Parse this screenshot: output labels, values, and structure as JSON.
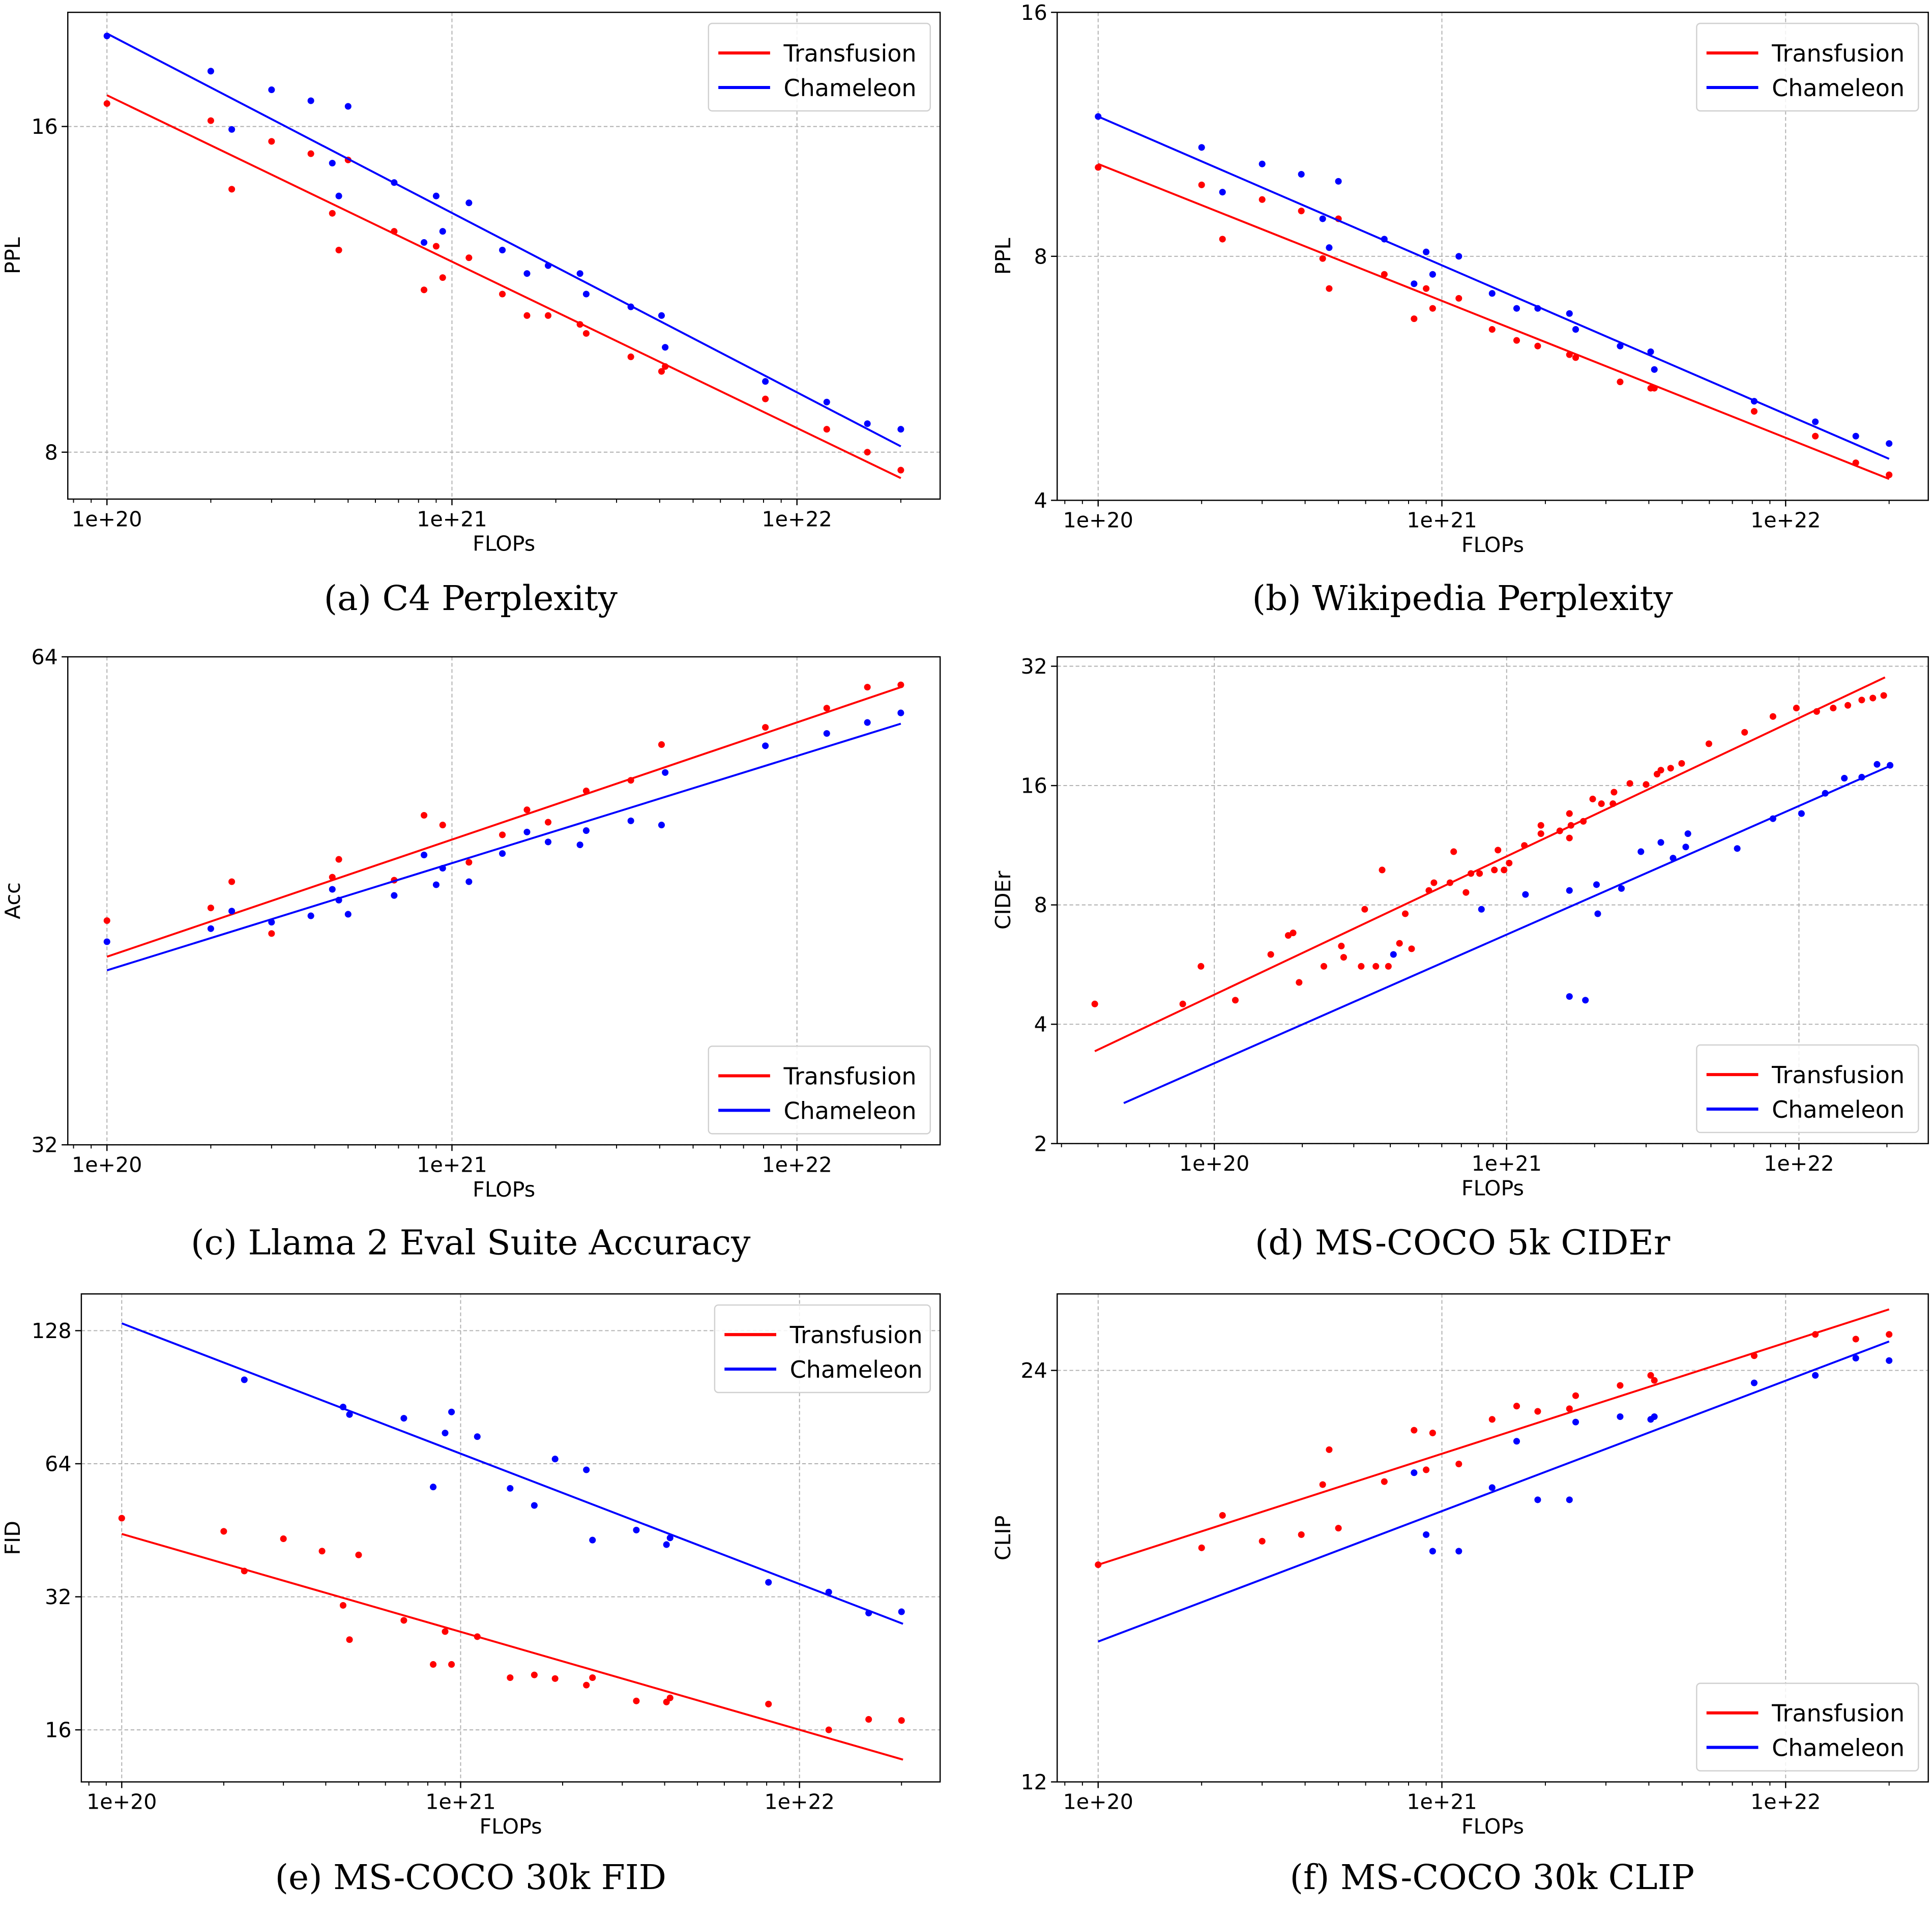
{
  "chart_data": [
    {
      "type": "scatter",
      "title": "(a) C4 Perplexity",
      "xlabel": "FLOPs",
      "ylabel": "PPL",
      "xscale": "log",
      "yscale": "log",
      "xlim": [
        7.7e+19,
        2.6e+22
      ],
      "ylim": [
        7.24,
        20.4
      ],
      "xticks": [
        1e+20,
        1e+21,
        1e+22
      ],
      "xtick_labels": [
        "1e+20",
        "1e+21",
        "1e+22"
      ],
      "yticks": [
        8,
        16
      ],
      "ytick_labels": [
        "8",
        "16"
      ],
      "grid": true,
      "legend": "upper right",
      "series": [
        {
          "name": "Transfusion",
          "color": "#ff0000",
          "x": [
            1e+20,
            2e+20,
            2.3e+20,
            3e+20,
            3.9e+20,
            4.5e+20,
            4.7e+20,
            5e+20,
            6.8e+20,
            8.3e+20,
            9e+20,
            9.4e+20,
            1.12e+21,
            1.4e+21,
            1.65e+21,
            1.9e+21,
            2.35e+21,
            2.45e+21,
            3.3e+21,
            4.05e+21,
            4.15e+21,
            8.1e+21,
            1.22e+22,
            1.6e+22,
            2e+22
          ],
          "y": [
            16.8,
            16.2,
            14.0,
            15.5,
            15.1,
            13.3,
            12.3,
            14.9,
            12.8,
            11.3,
            12.4,
            11.6,
            12.1,
            11.2,
            10.7,
            10.7,
            10.5,
            10.3,
            9.8,
            9.5,
            9.6,
            8.96,
            8.4,
            8.0,
            7.7
          ],
          "fit": {
            "x": [
              1e+20,
              2e+22
            ],
            "y": [
              17.1,
              7.57
            ]
          }
        },
        {
          "name": "Chameleon",
          "color": "#0000ff",
          "x": [
            1e+20,
            2e+20,
            2.3e+20,
            3e+20,
            3.9e+20,
            4.5e+20,
            4.7e+20,
            5e+20,
            6.8e+20,
            8.3e+20,
            9e+20,
            9.4e+20,
            1.12e+21,
            1.4e+21,
            1.65e+21,
            1.9e+21,
            2.35e+21,
            2.45e+21,
            3.3e+21,
            4.05e+21,
            4.15e+21,
            8.1e+21,
            1.22e+22,
            1.6e+22,
            2e+22
          ],
          "y": [
            19.4,
            18.0,
            15.9,
            17.3,
            16.9,
            14.8,
            13.8,
            16.7,
            14.2,
            12.5,
            13.8,
            12.8,
            13.6,
            12.3,
            11.7,
            11.9,
            11.7,
            11.2,
            10.9,
            10.7,
            10.0,
            9.3,
            8.9,
            8.5,
            8.4
          ],
          "fit": {
            "x": [
              1e+20,
              2e+22
            ],
            "y": [
              19.5,
              8.1
            ]
          }
        }
      ]
    },
    {
      "type": "scatter",
      "title": "(b) Wikipedia Perplexity",
      "xlabel": "FLOPs",
      "ylabel": "PPL",
      "xscale": "log",
      "yscale": "log",
      "xlim": [
        7.6e+19,
        2.6e+22
      ],
      "ylim": [
        4,
        16
      ],
      "xticks": [
        1e+20,
        1e+21,
        1e+22
      ],
      "xtick_labels": [
        "1e+20",
        "1e+21",
        "1e+22"
      ],
      "yticks": [
        4,
        8,
        16
      ],
      "ytick_labels": [
        "4",
        "8",
        "16"
      ],
      "grid": true,
      "legend": "upper right",
      "series": [
        {
          "name": "Transfusion",
          "color": "#ff0000",
          "x": [
            1e+20,
            2e+20,
            2.3e+20,
            3e+20,
            3.9e+20,
            4.5e+20,
            4.7e+20,
            5e+20,
            6.8e+20,
            8.3e+20,
            9e+20,
            9.4e+20,
            1.12e+21,
            1.4e+21,
            1.65e+21,
            1.9e+21,
            2.35e+21,
            2.45e+21,
            3.3e+21,
            4.05e+21,
            4.15e+21,
            8.1e+21,
            1.22e+22,
            1.6e+22,
            2e+22
          ],
          "y": [
            10.3,
            9.8,
            8.4,
            9.4,
            9.1,
            7.95,
            7.3,
            8.9,
            7.6,
            6.7,
            7.3,
            6.9,
            7.1,
            6.5,
            6.3,
            6.2,
            6.05,
            6.0,
            5.6,
            5.5,
            5.5,
            5.15,
            4.8,
            4.45,
            4.3
          ],
          "fit": {
            "x": [
              1e+20,
              2e+22
            ],
            "y": [
              10.4,
              4.25
            ]
          }
        },
        {
          "name": "Chameleon",
          "color": "#0000ff",
          "x": [
            1e+20,
            2e+20,
            2.3e+20,
            3e+20,
            3.9e+20,
            4.5e+20,
            4.7e+20,
            5e+20,
            6.8e+20,
            8.3e+20,
            9e+20,
            9.4e+20,
            1.12e+21,
            1.4e+21,
            1.65e+21,
            1.9e+21,
            2.35e+21,
            2.45e+21,
            3.3e+21,
            4.05e+21,
            4.15e+21,
            8.1e+21,
            1.22e+22,
            1.6e+22,
            2e+22
          ],
          "y": [
            11.9,
            10.9,
            9.6,
            10.4,
            10.1,
            8.9,
            8.2,
            9.9,
            8.4,
            7.4,
            8.1,
            7.6,
            8.0,
            7.2,
            6.9,
            6.9,
            6.8,
            6.5,
            6.2,
            6.1,
            5.8,
            5.3,
            5.0,
            4.8,
            4.7
          ],
          "fit": {
            "x": [
              1e+20,
              2e+22
            ],
            "y": [
              11.9,
              4.5
            ]
          }
        }
      ]
    },
    {
      "type": "scatter",
      "title": "(c) Llama 2 Eval Suite Accuracy",
      "xlabel": "FLOPs",
      "ylabel": "Acc",
      "xscale": "log",
      "yscale": "log",
      "xlim": [
        7.7e+19,
        2.6e+22
      ],
      "ylim": [
        32,
        64
      ],
      "xticks": [
        1e+20,
        1e+21,
        1e+22
      ],
      "xtick_labels": [
        "1e+20",
        "1e+21",
        "1e+22"
      ],
      "yticks": [
        32,
        64
      ],
      "ytick_labels": [
        "32",
        "64"
      ],
      "grid": true,
      "legend": "lower right",
      "series": [
        {
          "name": "Transfusion",
          "color": "#ff0000",
          "x": [
            1e+20,
            2e+20,
            2.3e+20,
            3e+20,
            4.5e+20,
            4.7e+20,
            6.8e+20,
            8.3e+20,
            9.4e+20,
            1.12e+21,
            1.4e+21,
            1.65e+21,
            1.9e+21,
            2.45e+21,
            3.3e+21,
            4.05e+21,
            8.1e+21,
            1.22e+22,
            1.6e+22,
            2e+22
          ],
          "y": [
            44.0,
            44.8,
            46.5,
            43.2,
            46.8,
            48.0,
            46.6,
            51.1,
            50.4,
            47.8,
            49.7,
            51.5,
            50.6,
            52.9,
            53.7,
            56.5,
            57.9,
            59.5,
            61.3,
            61.5
          ],
          "fit": {
            "x": [
              1e+20,
              2e+22
            ],
            "y": [
              41.8,
              61.3
            ]
          }
        },
        {
          "name": "Chameleon",
          "color": "#0000ff",
          "x": [
            1e+20,
            2e+20,
            2.3e+20,
            3e+20,
            3.9e+20,
            4.5e+20,
            4.7e+20,
            5e+20,
            6.8e+20,
            8.3e+20,
            9e+20,
            9.4e+20,
            1.12e+21,
            1.4e+21,
            1.65e+21,
            1.9e+21,
            2.35e+21,
            2.45e+21,
            3.3e+21,
            4.05e+21,
            4.15e+21,
            8.1e+21,
            1.22e+22,
            1.6e+22,
            2e+22
          ],
          "y": [
            42.7,
            43.5,
            44.6,
            43.9,
            44.3,
            46.0,
            45.3,
            44.4,
            45.6,
            48.3,
            46.3,
            47.4,
            46.5,
            48.4,
            49.9,
            49.2,
            49.0,
            50.0,
            50.7,
            50.4,
            54.3,
            56.4,
            57.4,
            58.3,
            59.1
          ],
          "fit": {
            "x": [
              1e+20,
              2e+22
            ],
            "y": [
              41.0,
              58.2
            ]
          }
        }
      ]
    },
    {
      "type": "scatter",
      "title": "(d) MS-COCO 5k CIDEr",
      "xlabel": "FLOPs",
      "ylabel": "CIDEr",
      "xscale": "log",
      "yscale": "log",
      "xlim": [
        2.9e+19,
        2.77e+22
      ],
      "ylim": [
        2,
        33.8
      ],
      "xticks": [
        1e+20,
        1e+21,
        1e+22
      ],
      "xtick_labels": [
        "1e+20",
        "1e+21",
        "1e+22"
      ],
      "yticks": [
        2,
        4,
        8,
        16,
        32
      ],
      "ytick_labels": [
        "2",
        "4",
        "8",
        "16",
        "32"
      ],
      "grid": true,
      "legend": "lower right",
      "series": [
        {
          "name": "Transfusion",
          "color": "#ff0000",
          "x": [
            3.9e+19,
            7.8e+19,
            9e+19,
            1.18e+20,
            1.56e+20,
            1.79e+20,
            1.86e+20,
            1.95e+20,
            2.37e+20,
            2.72e+20,
            2.77e+20,
            3.27e+20,
            3.18e+20,
            3.57e+20,
            3.75e+20,
            3.94e+20,
            4.3e+20,
            4.5e+20,
            4.73e+20,
            5.42e+20,
            5.64e+20,
            6.4e+20,
            6.59e+20,
            7.26e+20,
            7.55e+20,
            8.08e+20,
            9.08e+20,
            9.34e+20,
            9.8e+20,
            1.02e+21,
            1.15e+21,
            1.31e+21,
            1.31e+21,
            1.52e+21,
            1.64e+21,
            1.64e+21,
            1.66e+21,
            1.83e+21,
            1.97e+21,
            2.11e+21,
            2.31e+21,
            2.33e+21,
            2.64e+21,
            3e+21,
            3.27e+21,
            3.37e+21,
            3.64e+21,
            3.97e+21,
            4.92e+21,
            6.52e+21,
            8.15e+21,
            9.8e+21,
            1.15e+22,
            1.31e+22,
            1.47e+22,
            1.64e+22,
            1.79e+22,
            1.95e+22
          ],
          "y": [
            4.5,
            4.5,
            5.6,
            4.6,
            6.0,
            6.7,
            6.8,
            5.1,
            5.6,
            6.3,
            5.9,
            7.8,
            5.6,
            5.6,
            9.8,
            5.6,
            6.4,
            7.6,
            6.2,
            8.7,
            9.1,
            9.1,
            10.9,
            8.6,
            9.6,
            9.6,
            9.8,
            11.0,
            9.8,
            10.2,
            11.3,
            12.1,
            12.7,
            12.3,
            13.6,
            11.8,
            12.7,
            13.0,
            14.8,
            14.4,
            14.4,
            15.4,
            16.2,
            16.1,
            17.1,
            17.5,
            17.7,
            18.2,
            20.4,
            21.8,
            23.9,
            25.1,
            24.6,
            25.1,
            25.5,
            26.3,
            26.6,
            27.0
          ],
          "fit": {
            "x": [
              3.9e+19,
              1.97e+22
            ],
            "y": [
              3.42,
              30.0
            ]
          }
        },
        {
          "name": "Chameleon",
          "color": "#0000ff",
          "x": [
            4.1e+20,
            8.2e+20,
            1.16e+21,
            1.64e+21,
            1.64e+21,
            1.86e+21,
            2.03e+21,
            2.05e+21,
            2.47e+21,
            2.88e+21,
            3.37e+21,
            3.71e+21,
            4.1e+21,
            4.17e+21,
            6.15e+21,
            8.15e+21,
            1.02e+22,
            1.23e+22,
            1.43e+22,
            1.64e+22,
            1.85e+22,
            2.05e+22
          ],
          "y": [
            6.0,
            7.8,
            8.5,
            8.7,
            4.7,
            4.6,
            9.0,
            7.6,
            8.8,
            10.9,
            11.5,
            10.5,
            11.2,
            12.1,
            11.1,
            13.2,
            13.6,
            15.3,
            16.7,
            16.8,
            18.1,
            18.0
          ],
          "fit": {
            "x": [
              4.9e+19,
              2.07e+22
            ],
            "y": [
              2.53,
              18.0
            ]
          }
        }
      ]
    },
    {
      "type": "scatter",
      "title": "(e) MS-COCO 30k FID",
      "xlabel": "FLOPs",
      "ylabel": "FID",
      "xscale": "log",
      "yscale": "log",
      "xlim": [
        7.6e+19,
        2.6e+22
      ],
      "ylim": [
        12.2,
        155
      ],
      "xticks": [
        1e+20,
        1e+21,
        1e+22
      ],
      "xtick_labels": [
        "1e+20",
        "1e+21",
        "1e+22"
      ],
      "yticks": [
        16,
        32,
        64,
        128
      ],
      "ytick_labels": [
        "16",
        "32",
        "64",
        "128"
      ],
      "grid": true,
      "legend": "upper right",
      "series": [
        {
          "name": "Transfusion",
          "color": "#ff0000",
          "x": [
            1e+20,
            2e+20,
            2.3e+20,
            3e+20,
            3.9e+20,
            4.5e+20,
            4.7e+20,
            5e+20,
            6.8e+20,
            8.3e+20,
            9e+20,
            9.4e+20,
            1.12e+21,
            1.4e+21,
            1.65e+21,
            1.9e+21,
            2.35e+21,
            2.45e+21,
            3.3e+21,
            4.05e+21,
            4.15e+21,
            8.1e+21,
            1.22e+22,
            1.6e+22,
            2e+22
          ],
          "y": [
            48.2,
            45.0,
            36.6,
            43.3,
            40.6,
            30.6,
            25.6,
            39.8,
            28.3,
            22.5,
            26.7,
            22.5,
            26.0,
            21.0,
            21.3,
            20.9,
            20.2,
            21.0,
            18.6,
            18.5,
            18.9,
            18.3,
            16.0,
            16.9,
            16.8
          ],
          "fit": {
            "x": [
              1e+20,
              2.02e+22
            ],
            "y": [
              44.4,
              13.7
            ]
          }
        },
        {
          "name": "Chameleon",
          "color": "#0000ff",
          "x": [
            2.3e+20,
            4.5e+20,
            4.7e+20,
            6.8e+20,
            8.3e+20,
            9e+20,
            9.4e+20,
            1.12e+21,
            1.4e+21,
            1.65e+21,
            1.9e+21,
            2.35e+21,
            2.45e+21,
            3.3e+21,
            4.05e+21,
            4.15e+21,
            8.1e+21,
            1.22e+22,
            1.6e+22,
            2e+22
          ],
          "y": [
            99.1,
            86.0,
            82.7,
            81.1,
            56.7,
            75.1,
            83.8,
            73.7,
            56.3,
            51.5,
            65.6,
            62.0,
            43.0,
            45.3,
            42.0,
            43.5,
            34.5,
            32.8,
            29.4,
            29.6
          ],
          "fit": {
            "x": [
              1e+20,
              2.02e+22
            ],
            "y": [
              133,
              27.8
            ]
          }
        }
      ]
    },
    {
      "type": "scatter",
      "title": "(f) MS-COCO 30k CLIP",
      "xlabel": "FLOPs",
      "ylabel": "CLIP",
      "xscale": "log",
      "yscale": "log",
      "xlim": [
        7.6e+19,
        2.6e+22
      ],
      "ylim": [
        12,
        27.3
      ],
      "xticks": [
        1e+20,
        1e+21,
        1e+22
      ],
      "xtick_labels": [
        "1e+20",
        "1e+21",
        "1e+22"
      ],
      "yticks": [
        12,
        24
      ],
      "ytick_labels": [
        "12",
        "24"
      ],
      "grid": true,
      "legend": "lower right",
      "series": [
        {
          "name": "Transfusion",
          "color": "#ff0000",
          "x": [
            1e+20,
            2e+20,
            2.3e+20,
            3e+20,
            3.9e+20,
            4.5e+20,
            4.7e+20,
            5e+20,
            6.8e+20,
            8.3e+20,
            9e+20,
            9.4e+20,
            1.12e+21,
            1.4e+21,
            1.65e+21,
            1.9e+21,
            2.35e+21,
            2.45e+21,
            3.3e+21,
            4.05e+21,
            4.15e+21,
            8.1e+21,
            1.22e+22,
            1.6e+22,
            2e+22
          ],
          "y": [
            17.3,
            17.8,
            18.8,
            18.0,
            18.2,
            19.8,
            21.0,
            18.4,
            19.9,
            21.7,
            20.3,
            21.6,
            20.5,
            22.1,
            22.6,
            22.4,
            22.5,
            23.0,
            23.4,
            23.8,
            23.6,
            24.6,
            25.5,
            25.3,
            25.5
          ],
          "fit": {
            "x": [
              1e+20,
              2e+22
            ],
            "y": [
              17.3,
              26.6
            ]
          }
        },
        {
          "name": "Chameleon",
          "color": "#0000ff",
          "x": [
            8.3e+20,
            9e+20,
            9.4e+20,
            1.12e+21,
            1.4e+21,
            1.65e+21,
            1.9e+21,
            2.35e+21,
            2.45e+21,
            3.3e+21,
            4.05e+21,
            4.15e+21,
            8.1e+21,
            1.22e+22,
            1.6e+22,
            2e+22
          ],
          "y": [
            20.2,
            18.2,
            17.7,
            17.7,
            19.7,
            21.3,
            19.3,
            19.3,
            22.0,
            22.2,
            22.1,
            22.2,
            23.5,
            23.8,
            24.5,
            24.4
          ],
          "fit": {
            "x": [
              1e+20,
              2e+22
            ],
            "y": [
              15.2,
              25.2
            ]
          }
        }
      ]
    }
  ]
}
